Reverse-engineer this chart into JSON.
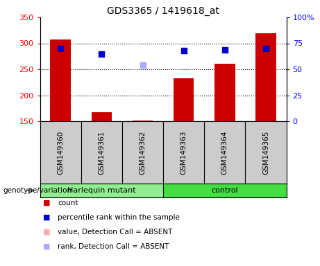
{
  "title": "GDS3365 / 1419618_at",
  "samples": [
    "GSM149360",
    "GSM149361",
    "GSM149362",
    "GSM149363",
    "GSM149364",
    "GSM149365"
  ],
  "counts": [
    307,
    168,
    152,
    233,
    261,
    319
  ],
  "percentile_ranks": [
    70,
    65,
    null,
    68,
    69,
    70
  ],
  "absent_value": [
    null,
    null,
    258,
    null,
    null,
    null
  ],
  "absent_rank_val": [
    null,
    null,
    258,
    null,
    null,
    null
  ],
  "bar_color": "#cc0000",
  "bar_bottom": 150,
  "percentile_color": "#0000cc",
  "absent_value_color": "#ffaaaa",
  "absent_rank_color": "#aaaaff",
  "ylim_left": [
    150,
    350
  ],
  "ylim_right": [
    0,
    100
  ],
  "yticks_left": [
    150,
    200,
    250,
    300,
    350
  ],
  "yticks_right": [
    0,
    25,
    50,
    75,
    100
  ],
  "ytick_labels_right": [
    "0",
    "25",
    "50",
    "75",
    "100%"
  ],
  "grid_values": [
    200,
    250,
    300
  ],
  "group1": {
    "label": "Harlequin mutant",
    "indices": [
      0,
      1,
      2
    ],
    "color": "#90ee90"
  },
  "group2": {
    "label": "control",
    "indices": [
      3,
      4,
      5
    ],
    "color": "#44dd44"
  },
  "genotype_label": "genotype/variation",
  "legend": [
    {
      "label": "count",
      "color": "#cc0000"
    },
    {
      "label": "percentile rank within the sample",
      "color": "#0000cc"
    },
    {
      "label": "value, Detection Call = ABSENT",
      "color": "#ffaaaa"
    },
    {
      "label": "rank, Detection Call = ABSENT",
      "color": "#aaaaff"
    }
  ],
  "bar_width": 0.5,
  "dot_size": 40
}
